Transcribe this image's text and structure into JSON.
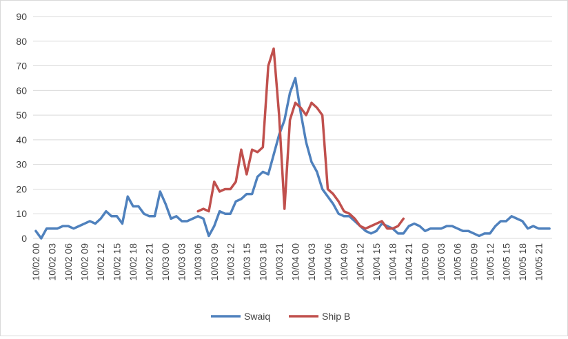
{
  "chart_data": {
    "type": "line",
    "title": "",
    "xlabel": "",
    "ylabel": "",
    "ylim": [
      0,
      90
    ],
    "yticks": [
      0,
      10,
      20,
      30,
      40,
      50,
      60,
      70,
      80,
      90
    ],
    "grid": "horizontal",
    "legend_position": "bottom",
    "x": [
      "10/02 00",
      "10/02 01",
      "10/02 02",
      "10/02 03",
      "10/02 04",
      "10/02 05",
      "10/02 06",
      "10/02 07",
      "10/02 08",
      "10/02 09",
      "10/02 10",
      "10/02 11",
      "10/02 12",
      "10/02 13",
      "10/02 14",
      "10/02 15",
      "10/02 16",
      "10/02 17",
      "10/02 18",
      "10/02 19",
      "10/02 20",
      "10/02 21",
      "10/02 22",
      "10/02 23",
      "10/03 00",
      "10/03 01",
      "10/03 02",
      "10/03 03",
      "10/03 04",
      "10/03 05",
      "10/03 06",
      "10/03 07",
      "10/03 08",
      "10/03 09",
      "10/03 10",
      "10/03 11",
      "10/03 12",
      "10/03 13",
      "10/03 14",
      "10/03 15",
      "10/03 16",
      "10/03 17",
      "10/03 18",
      "10/03 19",
      "10/03 20",
      "10/03 21",
      "10/03 22",
      "10/03 23",
      "10/04 00",
      "10/04 01",
      "10/04 02",
      "10/04 03",
      "10/04 04",
      "10/04 05",
      "10/04 06",
      "10/04 07",
      "10/04 08",
      "10/04 09",
      "10/04 10",
      "10/04 11",
      "10/04 12",
      "10/04 13",
      "10/04 14",
      "10/04 15",
      "10/04 16",
      "10/04 17",
      "10/04 18",
      "10/04 19",
      "10/04 20",
      "10/04 21",
      "10/04 22",
      "10/04 23",
      "10/05 00",
      "10/05 01",
      "10/05 02",
      "10/05 03",
      "10/05 04",
      "10/05 05",
      "10/05 06",
      "10/05 07",
      "10/05 08",
      "10/05 09",
      "10/05 10",
      "10/05 11",
      "10/05 12",
      "10/05 13",
      "10/05 14",
      "10/05 15",
      "10/05 16",
      "10/05 17",
      "10/05 18",
      "10/05 19",
      "10/05 20",
      "10/05 21",
      "10/05 22",
      "10/05 23"
    ],
    "x_tick_labels": [
      "10/02 00",
      "10/02 03",
      "10/02 06",
      "10/02 09",
      "10/02 12",
      "10/02 15",
      "10/02 18",
      "10/02 21",
      "10/03 00",
      "10/03 03",
      "10/03 06",
      "10/03 09",
      "10/03 12",
      "10/03 15",
      "10/03 18",
      "10/03 21",
      "10/04 00",
      "10/04 03",
      "10/04 06",
      "10/04 09",
      "10/04 12",
      "10/04 15",
      "10/04 18",
      "10/04 21",
      "10/05 00",
      "10/05 03",
      "10/05 06",
      "10/05 09",
      "10/05 12",
      "10/05 15",
      "10/05 18",
      "10/05 21"
    ],
    "series": [
      {
        "name": "Swaiq",
        "color": "#4f81bd",
        "values": [
          3,
          0,
          4,
          4,
          4,
          5,
          5,
          4,
          5,
          6,
          7,
          6,
          8,
          11,
          9,
          9,
          6,
          17,
          13,
          13,
          10,
          9,
          9,
          19,
          14,
          8,
          9,
          7,
          7,
          8,
          9,
          8,
          1,
          5,
          11,
          10,
          10,
          15,
          16,
          18,
          18,
          25,
          27,
          26,
          34,
          42,
          48,
          59,
          65,
          51,
          39,
          31,
          27,
          20,
          17,
          14,
          10,
          9,
          9,
          7,
          5,
          3,
          2,
          3,
          6,
          5,
          4,
          2,
          2,
          5,
          6,
          5,
          3,
          4,
          4,
          4,
          5,
          5,
          4,
          3,
          3,
          2,
          1,
          2,
          2,
          5,
          7,
          7,
          9,
          8,
          7,
          4,
          5,
          4,
          4,
          4
        ]
      },
      {
        "name": "Ship B",
        "color": "#c0504d",
        "values": [
          null,
          null,
          null,
          null,
          null,
          null,
          null,
          null,
          null,
          null,
          null,
          null,
          null,
          null,
          null,
          null,
          null,
          null,
          null,
          null,
          null,
          null,
          null,
          null,
          null,
          null,
          null,
          null,
          null,
          null,
          11,
          12,
          11,
          23,
          19,
          20,
          20,
          23,
          36,
          26,
          36,
          35,
          37,
          70,
          77,
          50,
          12,
          48,
          55,
          53,
          50,
          55,
          53,
          50,
          20,
          18,
          15,
          11,
          10,
          8,
          5,
          4,
          5,
          6,
          7,
          4,
          4,
          5,
          8,
          null,
          null,
          null,
          null,
          null,
          null,
          null,
          null,
          null,
          null,
          null,
          null,
          null,
          null,
          null,
          null,
          null,
          null,
          null,
          null,
          null,
          null,
          null,
          null,
          null,
          null,
          null
        ]
      }
    ]
  }
}
